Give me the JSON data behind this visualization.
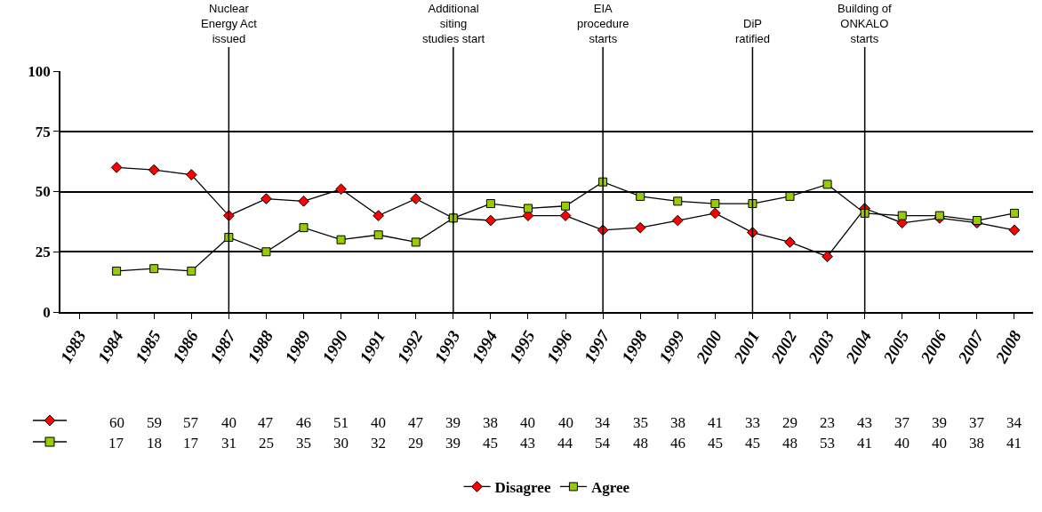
{
  "chart_data": {
    "type": "line",
    "categories": [
      "1983",
      "1984",
      "1985",
      "1986",
      "1987",
      "1988",
      "1989",
      "1990",
      "1991",
      "1992",
      "1993",
      "1994",
      "1995",
      "1996",
      "1997",
      "1998",
      "1999",
      "2000",
      "2001",
      "2002",
      "2003",
      "2004",
      "2005",
      "2006",
      "2007",
      "2008"
    ],
    "series": [
      {
        "name": "Disagree",
        "color": "#ff0000",
        "marker": "diamond",
        "values": [
          null,
          60,
          59,
          57,
          40,
          47,
          46,
          51,
          40,
          47,
          39,
          38,
          40,
          40,
          34,
          35,
          38,
          41,
          33,
          29,
          23,
          43,
          37,
          39,
          37,
          34
        ]
      },
      {
        "name": "Agree",
        "color": "#99cc00",
        "marker": "square",
        "values": [
          null,
          17,
          18,
          17,
          31,
          25,
          35,
          30,
          32,
          29,
          39,
          45,
          43,
          44,
          54,
          48,
          46,
          45,
          45,
          48,
          53,
          41,
          40,
          40,
          38,
          41
        ]
      }
    ],
    "ylim": [
      0,
      100
    ],
    "yticks": [
      0,
      25,
      50,
      75,
      100
    ],
    "grid": "y",
    "legend": "bottom",
    "data_labels": true,
    "line_style": "solid",
    "ref_lines": [
      {
        "axis": "x",
        "value": "1987",
        "label": "Nuclear\nEnergy Act\nissued"
      },
      {
        "axis": "x",
        "value": "1993",
        "label": "Additional\nsiting\nstudies start"
      },
      {
        "axis": "x",
        "value": "1997",
        "label": "EIA\nprocedure\nstarts"
      },
      {
        "axis": "x",
        "value": "2001",
        "label": "DiP\nratified"
      },
      {
        "axis": "x",
        "value": "2004",
        "label": "Building of\nONKALO\nstarts"
      }
    ]
  }
}
